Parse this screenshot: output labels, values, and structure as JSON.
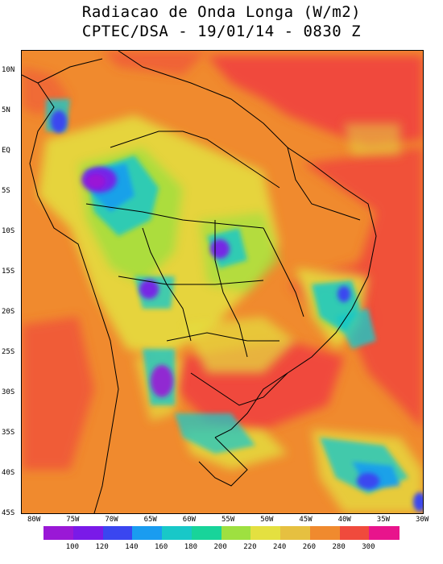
{
  "title": {
    "line1": "Radiacao de Onda Longa (W/m2)",
    "line2": "CPTEC/DSA - 19/01/14 - 0830 Z"
  },
  "map": {
    "lon_range": [
      -82,
      -30
    ],
    "lat_range": [
      -45,
      12
    ],
    "lat_ticks": [
      "10N",
      "5N",
      "EQ",
      "5S",
      "10S",
      "15S",
      "20S",
      "25S",
      "30S",
      "35S",
      "40S",
      "45S"
    ],
    "lon_ticks": [
      "80W",
      "75W",
      "70W",
      "65W",
      "60W",
      "55W",
      "50W",
      "45W",
      "40W",
      "35W",
      "30W"
    ],
    "base_color": "#f08a2e",
    "ocean_warm_color": "#f04a3c"
  },
  "colorbar": {
    "colors": [
      "#9a18d6",
      "#7a1ae8",
      "#3a46f0",
      "#1a9cf0",
      "#18c8c8",
      "#18d49a",
      "#9ee040",
      "#e4e040",
      "#e6c040",
      "#f08a2e",
      "#f04a3c",
      "#e8148c"
    ],
    "labels": [
      "100",
      "120",
      "140",
      "160",
      "180",
      "200",
      "220",
      "240",
      "260",
      "280",
      "300"
    ]
  }
}
